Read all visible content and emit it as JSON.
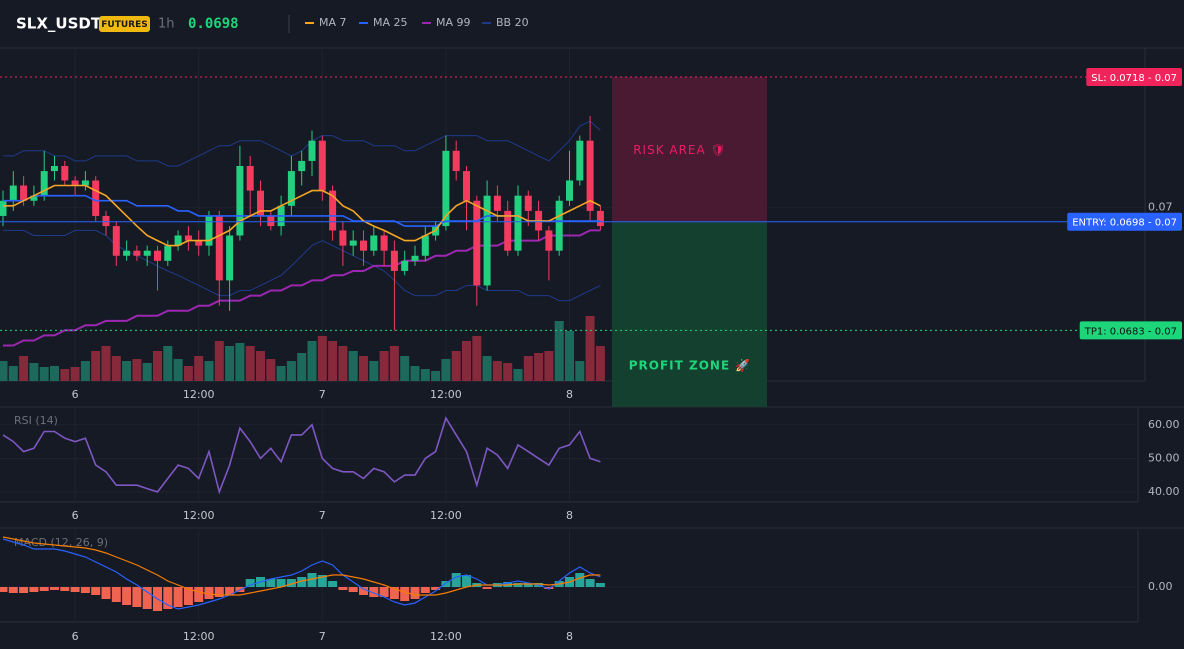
{
  "header": {
    "symbol": "SLX_USDT",
    "badge": "FUTURES",
    "interval": "1h",
    "price": "0.0698"
  },
  "chart_data": [
    {
      "type": "candlestick",
      "categories": [
        null,
        null,
        null,
        null,
        null,
        null,
        null,
        "6",
        null,
        null,
        null,
        null,
        null,
        null,
        null,
        null,
        null,
        null,
        null,
        "12:00",
        null,
        null,
        null,
        null,
        null,
        null,
        null,
        null,
        null,
        null,
        null,
        "7",
        null,
        null,
        null,
        null,
        null,
        null,
        null,
        null,
        null,
        null,
        null,
        "12:00",
        null,
        null,
        null,
        null,
        null,
        null,
        null,
        null,
        null,
        null,
        null,
        "8",
        null,
        null,
        null
      ],
      "open": [
        0.06988,
        0.07009,
        0.0703,
        0.07009,
        0.07016,
        0.0705,
        0.07057,
        0.07037,
        0.0703,
        0.07037,
        0.06988,
        0.06974,
        0.06933,
        0.0694,
        0.06933,
        0.0694,
        0.06926,
        0.06947,
        0.06961,
        0.06954,
        0.06947,
        0.06988,
        0.06899,
        0.06961,
        0.07057,
        0.07023,
        0.06988,
        0.06974,
        0.07002,
        0.0705,
        0.07064,
        0.07092,
        0.07023,
        0.06968,
        0.06947,
        0.06954,
        0.0694,
        0.06961,
        0.0694,
        0.06912,
        0.06926,
        0.06933,
        0.06961,
        0.06974,
        0.07078,
        0.0705,
        0.07009,
        0.06892,
        0.07016,
        0.06995,
        0.0694,
        0.07016,
        0.06995,
        0.06968,
        0.0694,
        0.07009,
        0.07037,
        0.07092,
        0.06995
      ],
      "high": [
        0.07023,
        0.0705,
        0.07043,
        0.0703,
        0.07078,
        0.07071,
        0.07064,
        0.07043,
        0.0705,
        0.07043,
        0.06995,
        0.06981,
        0.06954,
        0.06947,
        0.06947,
        0.06947,
        0.06954,
        0.06968,
        0.06974,
        0.06968,
        0.06995,
        0.06995,
        0.06974,
        0.07085,
        0.07071,
        0.07037,
        0.06995,
        0.07016,
        0.07071,
        0.07078,
        0.07106,
        0.07099,
        0.0703,
        0.06981,
        0.06968,
        0.06968,
        0.06974,
        0.06968,
        0.06954,
        0.0694,
        0.06947,
        0.06974,
        0.06981,
        0.07099,
        0.07092,
        0.07057,
        0.07016,
        0.07037,
        0.0703,
        0.07009,
        0.0703,
        0.07023,
        0.07009,
        0.06974,
        0.07016,
        0.07078,
        0.07099,
        0.07126,
        0.07002
      ],
      "low": [
        0.06974,
        0.06995,
        0.07002,
        0.07002,
        0.07009,
        0.07037,
        0.0703,
        0.07016,
        0.07023,
        0.06981,
        0.06961,
        0.06919,
        0.06926,
        0.06926,
        0.06919,
        0.06885,
        0.06919,
        0.0694,
        0.0694,
        0.06933,
        0.06933,
        0.06864,
        0.06857,
        0.06954,
        0.06988,
        0.06974,
        0.06968,
        0.06961,
        0.06988,
        0.0703,
        0.07043,
        0.07009,
        0.06954,
        0.06919,
        0.06933,
        0.06919,
        0.06933,
        0.06919,
        0.0683,
        0.06906,
        0.06919,
        0.06926,
        0.06954,
        0.06968,
        0.07037,
        0.06968,
        0.06864,
        0.06885,
        0.06981,
        0.06933,
        0.06933,
        0.06974,
        0.06954,
        0.06899,
        0.06933,
        0.07002,
        0.0703,
        0.06981,
        0.06968
      ],
      "close": [
        0.07009,
        0.0703,
        0.07009,
        0.07016,
        0.0705,
        0.07057,
        0.07037,
        0.0703,
        0.07037,
        0.06988,
        0.06974,
        0.06933,
        0.0694,
        0.06933,
        0.0694,
        0.06926,
        0.06947,
        0.06961,
        0.06954,
        0.06947,
        0.06988,
        0.06899,
        0.06961,
        0.07057,
        0.07023,
        0.06988,
        0.06974,
        0.07002,
        0.0705,
        0.07064,
        0.07092,
        0.07023,
        0.06968,
        0.06947,
        0.06954,
        0.0694,
        0.06961,
        0.0694,
        0.06912,
        0.06926,
        0.06933,
        0.06961,
        0.06974,
        0.07078,
        0.0705,
        0.07009,
        0.06892,
        0.07016,
        0.06995,
        0.0694,
        0.07016,
        0.06995,
        0.06968,
        0.0694,
        0.07009,
        0.07037,
        0.07092,
        0.06995,
        0.06974
      ],
      "up_color": "#22d07f",
      "down_color": "#f23b5f",
      "volume": [
        20,
        15,
        25,
        18,
        14,
        15,
        12,
        14,
        20,
        30,
        35,
        25,
        20,
        22,
        18,
        30,
        35,
        22,
        15,
        25,
        20,
        40,
        35,
        38,
        35,
        30,
        22,
        15,
        20,
        28,
        40,
        45,
        40,
        35,
        30,
        25,
        20,
        30,
        35,
        25,
        15,
        12,
        10,
        22,
        30,
        40,
        45,
        25,
        20,
        18,
        12,
        25,
        28,
        30,
        60,
        50,
        20,
        65,
        35
      ],
      "volume_ylim": [
        0,
        200
      ],
      "volume_up_color": "#1d6a5c",
      "volume_down_color": "#86293b",
      "series": [
        {
          "name": "MA 7",
          "color": "#f5a623",
          "values": [
            0.07002,
            0.07002,
            0.07009,
            0.07016,
            0.07023,
            0.0703,
            0.0703,
            0.0703,
            0.0703,
            0.07023,
            0.07016,
            0.07002,
            0.06988,
            0.06974,
            0.06961,
            0.06954,
            0.06947,
            0.06947,
            0.06954,
            0.06954,
            0.06954,
            0.06961,
            0.06968,
            0.06981,
            0.06988,
            0.06995,
            0.06995,
            0.07002,
            0.07009,
            0.07016,
            0.07023,
            0.07023,
            0.07016,
            0.07002,
            0.06995,
            0.06981,
            0.06974,
            0.06968,
            0.06961,
            0.06954,
            0.06954,
            0.06961,
            0.06968,
            0.06988,
            0.07002,
            0.07009,
            0.07002,
            0.06995,
            0.06988,
            0.06988,
            0.06988,
            0.06981,
            0.06981,
            0.06981,
            0.06988,
            0.06995,
            0.07002,
            0.07009,
            0.07002
          ]
        },
        {
          "name": "MA 25",
          "color": "#2962ff",
          "values": [
            0.07009,
            0.07009,
            0.07009,
            0.07016,
            0.07016,
            0.07016,
            0.07016,
            0.07016,
            0.07016,
            0.07009,
            0.07009,
            0.07009,
            0.07009,
            0.07002,
            0.07002,
            0.07002,
            0.07002,
            0.06995,
            0.06995,
            0.06988,
            0.06988,
            0.06988,
            0.06988,
            0.06988,
            0.06988,
            0.06988,
            0.06988,
            0.06988,
            0.06988,
            0.06988,
            0.06988,
            0.06988,
            0.06988,
            0.06988,
            0.06981,
            0.06981,
            0.06981,
            0.06981,
            0.06981,
            0.06974,
            0.06974,
            0.06974,
            0.06974,
            0.06981,
            0.06981,
            0.06981,
            0.06981,
            0.06988,
            0.06988,
            0.06988,
            0.06988,
            0.06981,
            0.06981,
            0.06981,
            0.06981,
            0.06981,
            0.06981,
            0.06981,
            0.06981
          ]
        },
        {
          "name": "MA 99",
          "color": "#9c27b0",
          "values": [
            0.06809,
            0.06809,
            0.06816,
            0.06816,
            0.06823,
            0.06823,
            0.0683,
            0.0683,
            0.06837,
            0.06837,
            0.06843,
            0.06843,
            0.06843,
            0.0685,
            0.0685,
            0.0685,
            0.06857,
            0.06857,
            0.06857,
            0.06864,
            0.06864,
            0.06871,
            0.06871,
            0.06871,
            0.06878,
            0.06878,
            0.06885,
            0.06885,
            0.06892,
            0.06892,
            0.06899,
            0.06899,
            0.06906,
            0.06906,
            0.06912,
            0.06912,
            0.06919,
            0.06919,
            0.06919,
            0.06926,
            0.06926,
            0.06926,
            0.06933,
            0.06933,
            0.0694,
            0.0694,
            0.06947,
            0.06947,
            0.06947,
            0.06954,
            0.06954,
            0.06954,
            0.06954,
            0.06961,
            0.06961,
            0.06961,
            0.06961,
            0.06968,
            0.06968
          ]
        },
        {
          "name": "BB 20",
          "color": "#1e3a8a",
          "upper": [
            0.07071,
            0.07071,
            0.07078,
            0.07078,
            0.07078,
            0.07071,
            0.07071,
            0.07064,
            0.07064,
            0.07071,
            0.07071,
            0.07071,
            0.07071,
            0.07064,
            0.07064,
            0.07064,
            0.07057,
            0.07057,
            0.07064,
            0.07071,
            0.07078,
            0.07085,
            0.07085,
            0.07092,
            0.07092,
            0.07092,
            0.07085,
            0.07078,
            0.07071,
            0.07078,
            0.07092,
            0.07099,
            0.07099,
            0.07092,
            0.07092,
            0.07092,
            0.07085,
            0.07085,
            0.07085,
            0.07078,
            0.07078,
            0.07085,
            0.07092,
            0.07099,
            0.07099,
            0.07099,
            0.07099,
            0.07092,
            0.07092,
            0.07092,
            0.07085,
            0.07078,
            0.07071,
            0.07064,
            0.07078,
            0.07092,
            0.07112,
            0.07119,
            0.07106
          ],
          "lower": [
            0.06968,
            0.06968,
            0.06968,
            0.06961,
            0.06961,
            0.06961,
            0.06961,
            0.06968,
            0.06968,
            0.06968,
            0.06961,
            0.06947,
            0.0694,
            0.06933,
            0.06926,
            0.06919,
            0.06912,
            0.06906,
            0.06899,
            0.06892,
            0.06885,
            0.06878,
            0.06878,
            0.06885,
            0.06885,
            0.06892,
            0.06899,
            0.06906,
            0.06919,
            0.06933,
            0.06947,
            0.06954,
            0.06947,
            0.0694,
            0.06933,
            0.06926,
            0.06919,
            0.06912,
            0.06899,
            0.06885,
            0.06878,
            0.06878,
            0.06878,
            0.06885,
            0.06885,
            0.06892,
            0.06892,
            0.06885,
            0.06885,
            0.06885,
            0.06885,
            0.06878,
            0.06878,
            0.06878,
            0.06871,
            0.06871,
            0.06878,
            0.06885,
            0.06892
          ]
        }
      ],
      "levels": [
        {
          "value": 0.0718,
          "label": "SL: 0.0718 - 0.07",
          "color": "#f0245a",
          "text_color": "#ffffff",
          "style": "dotted"
        },
        {
          "value": 0.0698,
          "label": "ENTRY: 0.0698 - 0.07",
          "color": "#2962ff",
          "text_color": "#ffffff",
          "style": "solid"
        },
        {
          "value": 0.0683,
          "label": "TP1: 0.0683 - 0.07",
          "color": "#1ed67a",
          "text_color": "#0b0e14",
          "style": "dotted"
        }
      ],
      "zones": [
        {
          "label": "RISK AREA 🛡",
          "color": "#4a1a33",
          "text_color": "#e91e63"
        },
        {
          "label": "PROFIT ZONE 🚀",
          "color": "#14402f",
          "text_color": "#1ed67a"
        }
      ],
      "ylim": [
        0.0676,
        0.0722
      ],
      "yticks": [
        0.07
      ],
      "grid": true
    },
    {
      "type": "line",
      "title": "RSI (14)",
      "color": "#7e57c2",
      "categories": [
        null,
        null,
        null,
        null,
        null,
        null,
        null,
        "6",
        null,
        null,
        null,
        null,
        null,
        null,
        null,
        null,
        null,
        null,
        null,
        "12:00",
        null,
        null,
        null,
        null,
        null,
        null,
        null,
        null,
        null,
        null,
        null,
        "7",
        null,
        null,
        null,
        null,
        null,
        null,
        null,
        null,
        null,
        null,
        null,
        "12:00",
        null,
        null,
        null,
        null,
        null,
        null,
        null,
        null,
        null,
        null,
        null,
        "8",
        null,
        null,
        null
      ],
      "values": [
        57,
        55,
        52,
        53,
        58,
        58,
        56,
        55,
        56,
        48,
        46,
        42,
        42,
        42,
        41,
        40,
        44,
        48,
        47,
        44,
        52,
        40,
        48,
        59,
        55,
        50,
        53,
        49,
        57,
        57,
        60,
        50,
        47,
        46,
        46,
        44,
        47,
        46,
        43,
        45,
        45,
        50,
        52,
        62,
        57,
        52,
        42,
        53,
        51,
        47,
        54,
        52,
        50,
        48,
        53,
        54,
        58,
        50,
        49
      ],
      "ylim": [
        37,
        65
      ],
      "yticks": [
        {
          "value": 60,
          "label": "60.00"
        },
        {
          "value": 50,
          "label": "50.00"
        },
        {
          "value": 40,
          "label": "40.00"
        }
      ],
      "grid": true
    },
    {
      "type": "macd",
      "title": "MACD (12, 26, 9)",
      "categories": [
        null,
        null,
        null,
        null,
        null,
        null,
        null,
        "6",
        null,
        null,
        null,
        null,
        null,
        null,
        null,
        null,
        null,
        null,
        null,
        "12:00",
        null,
        null,
        null,
        null,
        null,
        null,
        null,
        null,
        null,
        null,
        null,
        "7",
        null,
        null,
        null,
        null,
        null,
        null,
        null,
        null,
        null,
        null,
        null,
        "12:00",
        null,
        null,
        null,
        null,
        null,
        null,
        null,
        null,
        null,
        null,
        null,
        "8",
        null,
        null,
        null
      ],
      "histogram": [
        -5e-06,
        -6e-06,
        -6e-06,
        -5e-06,
        -4e-06,
        -3e-06,
        -4e-06,
        -5e-06,
        -6e-06,
        -8e-06,
        -1.2e-05,
        -1.5e-05,
        -1.8e-05,
        -2e-05,
        -2.2e-05,
        -2.4e-05,
        -2.2e-05,
        -2e-05,
        -1.8e-05,
        -1.5e-05,
        -1.2e-05,
        -1e-05,
        -8e-06,
        -5e-06,
        8e-06,
        1e-05,
        8e-06,
        8e-06,
        8e-06,
        1e-05,
        1.4e-05,
        1.2e-05,
        6e-06,
        -3e-06,
        -5e-06,
        -8e-06,
        -1e-05,
        -1e-05,
        -1.2e-05,
        -1.4e-05,
        -1.2e-05,
        -6e-06,
        -3e-06,
        6e-06,
        1.4e-05,
        1.2e-05,
        4e-06,
        -2e-06,
        4e-06,
        5e-06,
        4e-06,
        4e-06,
        4e-06,
        -2e-06,
        6e-06,
        1e-05,
        1.4e-05,
        8e-06,
        4e-06
      ],
      "macd": [
        4.8e-05,
        4.5e-05,
        4.2e-05,
        3.8e-05,
        3.8e-05,
        3.8e-05,
        3.6e-05,
        3.3e-05,
        3e-05,
        2.5e-05,
        2e-05,
        1.5e-05,
        8e-06,
        2e-06,
        -5e-06,
        -1.2e-05,
        -1.8e-05,
        -2.2e-05,
        -2e-05,
        -1.8e-05,
        -1.5e-05,
        -1.2e-05,
        -8e-06,
        -3e-06,
        2e-06,
        5e-06,
        8e-06,
        1e-05,
        1.2e-05,
        1.6e-05,
        2.2e-05,
        2.6e-05,
        2.2e-05,
        1.2e-05,
        5e-06,
        -2e-06,
        -6e-06,
        -1e-05,
        -1.5e-05,
        -1.8e-05,
        -1.6e-05,
        -1e-05,
        -4e-06,
        4e-06,
        1e-05,
        1.2e-05,
        8e-06,
        2e-06,
        2e-06,
        4e-06,
        6e-06,
        4e-06,
        2e-06,
        -2e-06,
        6e-06,
        1.4e-05,
        2e-05,
        1.4e-05,
        1e-05
      ],
      "signal": [
        5e-05,
        4.8e-05,
        4.6e-05,
        4.4e-05,
        4.3e-05,
        4.2e-05,
        4.1e-05,
        4e-05,
        3.9e-05,
        3.7e-05,
        3.4e-05,
        3e-05,
        2.6e-05,
        2.2e-05,
        1.7e-05,
        1.2e-05,
        6e-06,
        2e-06,
        -2e-06,
        -5e-06,
        -7e-06,
        -8e-06,
        -8e-06,
        -8e-06,
        -6e-06,
        -4e-06,
        -2e-06,
        0,
        3e-06,
        6e-06,
        8e-06,
        1e-05,
        1.2e-05,
        1.2e-05,
        1e-05,
        8e-06,
        5e-06,
        2e-06,
        -2e-06,
        -5e-06,
        -8e-06,
        -8e-06,
        -8e-06,
        -6e-06,
        -3e-06,
        0,
        2e-06,
        2e-06,
        2e-06,
        2e-06,
        3e-06,
        3e-06,
        3e-06,
        2e-06,
        3e-06,
        5e-06,
        9e-06,
        1.2e-05,
        1.2e-05
      ],
      "positive_color": "#26a69a",
      "negative_color": "#ef6350",
      "macd_color": "#2962ff",
      "signal_color": "#f57c00",
      "ylim": [
        -3.5e-05,
        5.7e-05
      ],
      "yticks": [
        {
          "value": 0,
          "label": "0.00"
        }
      ],
      "grid": true
    }
  ]
}
